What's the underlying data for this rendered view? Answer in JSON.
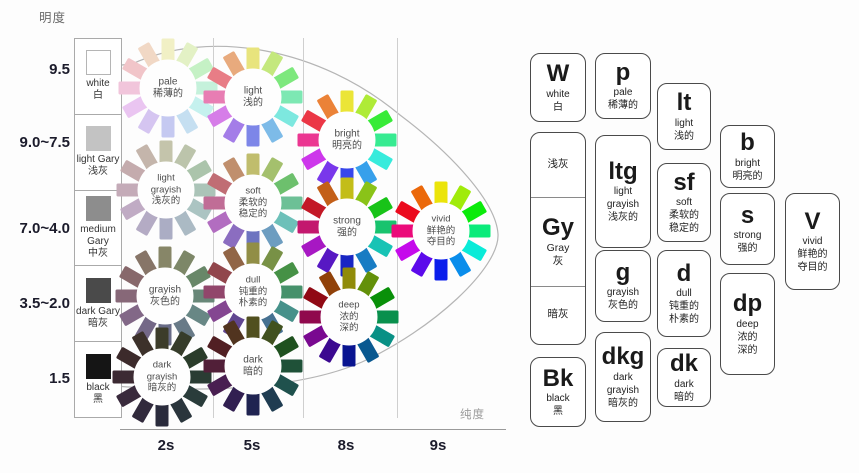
{
  "axes": {
    "lightness_title": "明度",
    "purity_title": "纯度",
    "lightness_ticks": [
      "9.5",
      "9.0~7.5",
      "7.0~4.0",
      "3.5~2.0",
      "1.5"
    ],
    "purity_ticks": [
      "2s",
      "5s",
      "8s",
      "9s"
    ]
  },
  "gray_scale": [
    {
      "en": "white",
      "zh": "白",
      "color": "#ffffff"
    },
    {
      "en": "light Gary",
      "zh": "浅灰",
      "color": "#c3c3c3"
    },
    {
      "en": "medium Gary",
      "zh": "中灰",
      "color": "#8d8d8d"
    },
    {
      "en": "dark Gary",
      "zh": "暗灰",
      "color": "#4a4a4a"
    },
    {
      "en": "black",
      "zh": "黑",
      "color": "#151515"
    }
  ],
  "hue_angles": [
    58,
    80,
    120,
    150,
    175,
    205,
    235,
    262,
    290,
    330,
    355,
    25
  ],
  "wheels": [
    {
      "id": "pale",
      "lines": [
        "pale",
        "稀薄的"
      ],
      "sat": 62,
      "light": 86
    },
    {
      "id": "light",
      "lines": [
        "light",
        "浅的"
      ],
      "sat": 70,
      "light": 70
    },
    {
      "id": "bright",
      "lines": [
        "bright",
        "明亮的"
      ],
      "sat": 82,
      "light": 57
    },
    {
      "id": "light_grayish",
      "lines": [
        "light",
        "grayish",
        "浅灰的"
      ],
      "sat": 18,
      "light": 72
    },
    {
      "id": "soft",
      "lines": [
        "soft",
        "柔软的",
        "稳定的"
      ],
      "sat": 40,
      "light": 59
    },
    {
      "id": "strong",
      "lines": [
        "strong",
        "强的"
      ],
      "sat": 78,
      "light": 43
    },
    {
      "id": "vivid",
      "lines": [
        "vivid",
        "鲜艳的",
        "夺目的"
      ],
      "sat": 92,
      "light": 48
    },
    {
      "id": "grayish",
      "lines": [
        "grayish",
        "灰色的"
      ],
      "sat": 13,
      "light": 47
    },
    {
      "id": "dull",
      "lines": [
        "dull",
        "钝重的",
        "朴素的"
      ],
      "sat": 35,
      "light": 42
    },
    {
      "id": "deep",
      "lines": [
        "deep",
        "浓的",
        "深的"
      ],
      "sat": 88,
      "light": 30
    },
    {
      "id": "dark_grayish",
      "lines": [
        "dark",
        "grayish",
        "暗灰的"
      ],
      "sat": 18,
      "light": 20
    },
    {
      "id": "dark",
      "lines": [
        "dark",
        "暗的"
      ],
      "sat": 45,
      "light": 22
    }
  ],
  "legend": {
    "boxes": [
      {
        "id": "W",
        "code": "W",
        "sub": [
          "white",
          "白"
        ]
      },
      {
        "id": "p",
        "code": "p",
        "sub": [
          "pale",
          "稀薄的"
        ]
      },
      {
        "id": "lt",
        "code": "lt",
        "sub": [
          "light",
          "浅的"
        ]
      },
      {
        "id": "b",
        "code": "b",
        "sub": [
          "bright",
          "明亮的"
        ]
      },
      {
        "id": "ltg",
        "code": "ltg",
        "sub": [
          "light",
          "grayish",
          "浅灰的"
        ]
      },
      {
        "id": "sf",
        "code": "sf",
        "sub": [
          "soft",
          "柔软的",
          "稳定的"
        ]
      },
      {
        "id": "s",
        "code": "s",
        "sub": [
          "strong",
          "强的"
        ]
      },
      {
        "id": "V",
        "code": "V",
        "sub": [
          "vivid",
          "鲜艳的",
          "夺目的"
        ]
      },
      {
        "id": "g",
        "code": "g",
        "sub": [
          "grayish",
          "灰色的"
        ]
      },
      {
        "id": "d",
        "code": "d",
        "sub": [
          "dull",
          "钝重的",
          "朴素的"
        ]
      },
      {
        "id": "dp",
        "code": "dp",
        "sub": [
          "deep",
          "浓的",
          "深的"
        ]
      },
      {
        "id": "dkg",
        "code": "dkg",
        "sub": [
          "dark",
          "grayish",
          "暗灰的"
        ]
      },
      {
        "id": "dk",
        "code": "dk",
        "sub": [
          "dark",
          "暗的"
        ]
      },
      {
        "id": "Bk",
        "code": "Bk",
        "sub": [
          "black",
          "黑"
        ]
      }
    ],
    "gray_column": {
      "cells": [
        {
          "code": "",
          "sub": [
            "浅灰"
          ]
        },
        {
          "code": "Gy",
          "sub": [
            "Gray",
            "灰"
          ]
        },
        {
          "code": "",
          "sub": [
            "暗灰"
          ]
        }
      ]
    }
  },
  "colors": {
    "axis_text": "#1b1b2b",
    "muted_text": "#9a9a9a",
    "separator": "#cfcfcf",
    "box_border": "#4a4a4a",
    "curve": "#b5b5b5"
  }
}
